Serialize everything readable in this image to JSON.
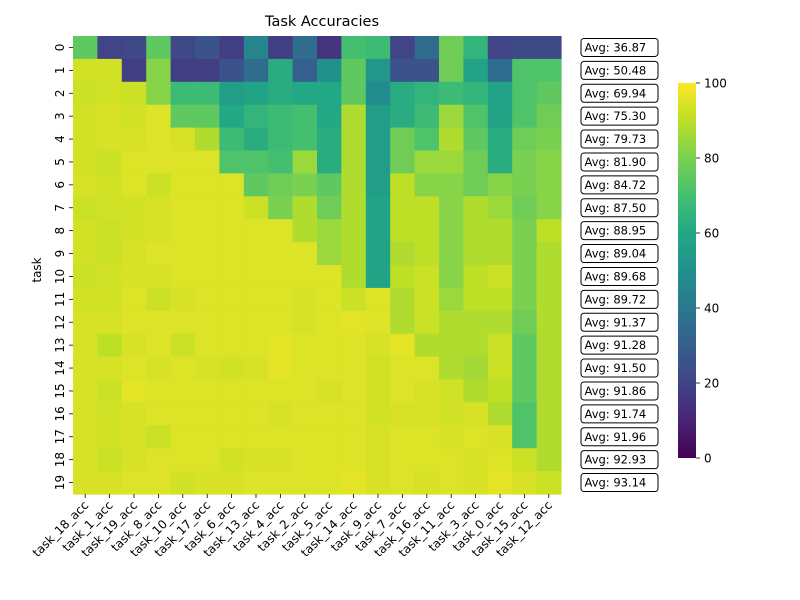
{
  "chart_data": {
    "type": "heatmap",
    "title": "Task Accuracies",
    "ylabel": "task",
    "xlabel": "",
    "colormap": "viridis",
    "vmin": 0,
    "vmax": 100,
    "colorbar_ticks": [
      0,
      20,
      40,
      60,
      80,
      100
    ],
    "columns": [
      "task_18_acc",
      "task_1_acc",
      "task_19_acc",
      "task_8_acc",
      "task_10_acc",
      "task_17_acc",
      "task_6_acc",
      "task_13_acc",
      "task_4_acc",
      "task_2_acc",
      "task_5_acc",
      "task_14_acc",
      "task_9_acc",
      "task_7_acc",
      "task_16_acc",
      "task_11_acc",
      "task_3_acc",
      "task_0_acc",
      "task_15_acc",
      "task_12_acc"
    ],
    "rows": [
      "0",
      "1",
      "2",
      "3",
      "4",
      "5",
      "6",
      "7",
      "8",
      "9",
      "10",
      "11",
      "12",
      "13",
      "14",
      "15",
      "16",
      "17",
      "18",
      "19"
    ],
    "values": [
      [
        75,
        20,
        22,
        75,
        22,
        25,
        18,
        45,
        18,
        35,
        15,
        70,
        68,
        20,
        35,
        78,
        65,
        20,
        22,
        22
      ],
      [
        93,
        93,
        18,
        82,
        18,
        18,
        25,
        35,
        62,
        30,
        50,
        75,
        52,
        25,
        25,
        78,
        58,
        35,
        72,
        72
      ],
      [
        92,
        93,
        92,
        82,
        68,
        68,
        55,
        58,
        62,
        60,
        60,
        75,
        48,
        62,
        65,
        68,
        65,
        58,
        72,
        75
      ],
      [
        93,
        94,
        93,
        95,
        75,
        75,
        60,
        65,
        68,
        70,
        60,
        88,
        55,
        62,
        68,
        85,
        72,
        58,
        72,
        78
      ],
      [
        93,
        94,
        94,
        95,
        94,
        88,
        68,
        62,
        68,
        70,
        62,
        88,
        55,
        78,
        72,
        88,
        75,
        62,
        78,
        80
      ],
      [
        93,
        92,
        95,
        95,
        95,
        95,
        72,
        72,
        70,
        85,
        62,
        88,
        55,
        78,
        85,
        85,
        78,
        62,
        80,
        82
      ],
      [
        94,
        93,
        95,
        92,
        95,
        95,
        95,
        75,
        78,
        80,
        75,
        88,
        55,
        90,
        82,
        82,
        78,
        82,
        80,
        82
      ],
      [
        92,
        93,
        93,
        94,
        95,
        95,
        95,
        92,
        80,
        88,
        78,
        88,
        58,
        90,
        90,
        82,
        88,
        85,
        78,
        82
      ],
      [
        93,
        92,
        93,
        94,
        95,
        95,
        95,
        95,
        95,
        88,
        85,
        88,
        58,
        90,
        90,
        82,
        88,
        88,
        80,
        90
      ],
      [
        93,
        92,
        94,
        95,
        95,
        95,
        95,
        95,
        95,
        95,
        85,
        88,
        58,
        88,
        90,
        82,
        88,
        88,
        80,
        88
      ],
      [
        92,
        93,
        94,
        94,
        95,
        95,
        95,
        95,
        95,
        95,
        95,
        88,
        58,
        90,
        92,
        82,
        90,
        92,
        80,
        88
      ],
      [
        93,
        93,
        95,
        92,
        94,
        95,
        95,
        95,
        95,
        94,
        95,
        92,
        95,
        88,
        92,
        85,
        90,
        90,
        80,
        88
      ],
      [
        94,
        94,
        95,
        95,
        95,
        95,
        95,
        95,
        95,
        94,
        95,
        96,
        95,
        88,
        92,
        88,
        88,
        88,
        78,
        88
      ],
      [
        94,
        90,
        94,
        95,
        92,
        95,
        95,
        95,
        96,
        95,
        95,
        95,
        94,
        96,
        88,
        88,
        88,
        92,
        75,
        88
      ],
      [
        94,
        94,
        95,
        94,
        95,
        94,
        93,
        94,
        96,
        95,
        95,
        95,
        93,
        95,
        95,
        88,
        86,
        92,
        75,
        88
      ],
      [
        94,
        92,
        96,
        95,
        95,
        95,
        95,
        95,
        95,
        95,
        94,
        95,
        93,
        95,
        94,
        93,
        88,
        90,
        75,
        88
      ],
      [
        94,
        93,
        94,
        95,
        95,
        95,
        95,
        95,
        94,
        95,
        95,
        95,
        93,
        94,
        94,
        93,
        94,
        88,
        72,
        88
      ],
      [
        94,
        93,
        94,
        92,
        95,
        95,
        95,
        95,
        95,
        95,
        95,
        95,
        94,
        95,
        95,
        94,
        95,
        94,
        72,
        88
      ],
      [
        94,
        92,
        94,
        95,
        95,
        95,
        93,
        94,
        94,
        95,
        95,
        95,
        94,
        95,
        95,
        95,
        94,
        95,
        92,
        88
      ],
      [
        94,
        94,
        95,
        95,
        93,
        94,
        94,
        95,
        95,
        95,
        95,
        96,
        94,
        95,
        94,
        95,
        94,
        96,
        94,
        92
      ]
    ],
    "row_averages": [
      "Avg: 36.87",
      "Avg: 50.48",
      "Avg: 69.94",
      "Avg: 75.30",
      "Avg: 79.73",
      "Avg: 81.90",
      "Avg: 84.72",
      "Avg: 87.50",
      "Avg: 88.95",
      "Avg: 89.04",
      "Avg: 89.68",
      "Avg: 89.72",
      "Avg: 91.37",
      "Avg: 91.28",
      "Avg: 91.50",
      "Avg: 91.86",
      "Avg: 91.74",
      "Avg: 91.96",
      "Avg: 92.93",
      "Avg: 93.14"
    ]
  }
}
